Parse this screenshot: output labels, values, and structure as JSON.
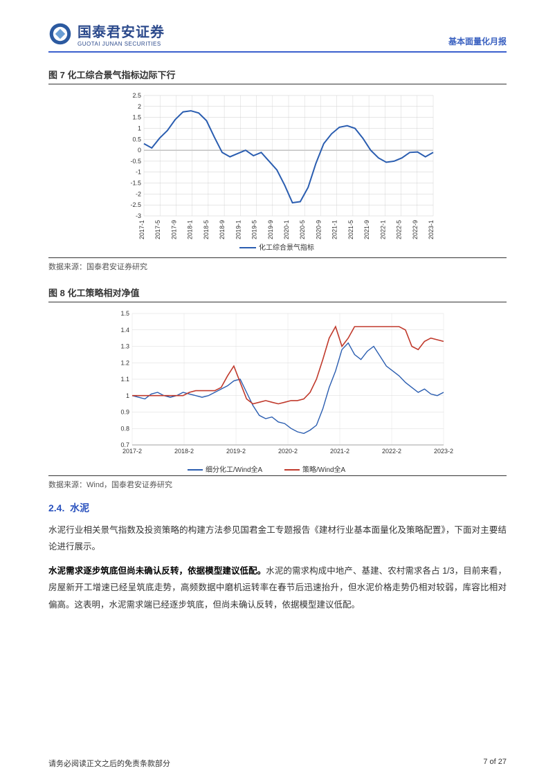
{
  "header": {
    "company_cn": "国泰君安证券",
    "company_en": "GUOTAI JUNAN SECURITIES",
    "report_type": "基本面量化月报",
    "logo_colors": {
      "outer": "#2c5aa0",
      "inner": "#6a9ed4"
    }
  },
  "figure7": {
    "title": "图 7 化工综合景气指标边际下行",
    "source": "数据来源：国泰君安证券研究",
    "type": "line",
    "legend": "化工综合景气指标",
    "line_color": "#2a5db0",
    "line_width": 2,
    "background_color": "#ffffff",
    "grid_color": "#cccccc",
    "ylim": [
      -3,
      2.5
    ],
    "ytick_step": 0.5,
    "yticks": [
      "-3",
      "-2.5",
      "-2",
      "-1.5",
      "-1",
      "-0.5",
      "0",
      "0.5",
      "1",
      "1.5",
      "2",
      "2.5"
    ],
    "x_labels": [
      "2017-1",
      "2017-5",
      "2017-9",
      "2018-1",
      "2018-5",
      "2018-9",
      "2019-1",
      "2019-5",
      "2019-9",
      "2020-1",
      "2020-5",
      "2020-9",
      "2021-1",
      "2021-5",
      "2021-9",
      "2022-1",
      "2022-5",
      "2022-9",
      "2023-1"
    ],
    "values": [
      0.3,
      0.1,
      0.55,
      0.9,
      1.4,
      1.75,
      1.8,
      1.7,
      1.35,
      0.6,
      -0.1,
      -0.3,
      -0.15,
      0.0,
      -0.25,
      -0.1,
      -0.5,
      -0.9,
      -1.6,
      -2.4,
      -2.35,
      -1.7,
      -0.6,
      0.3,
      0.75,
      1.05,
      1.12,
      1.0,
      0.55,
      0.0,
      -0.35,
      -0.55,
      -0.5,
      -0.35,
      -0.1,
      -0.08,
      -0.3,
      -0.1
    ]
  },
  "figure8": {
    "title": "图 8 化工策略相对净值",
    "source": "数据来源：Wind，国泰君安证券研究",
    "type": "line",
    "background_color": "#ffffff",
    "grid_color": "#d8d8d8",
    "ylim": [
      0.7,
      1.5
    ],
    "ytick_step": 0.1,
    "yticks": [
      "0.7",
      "0.8",
      "0.9",
      "1",
      "1.1",
      "1.2",
      "1.3",
      "1.4",
      "1.5"
    ],
    "x_labels": [
      "2017-2",
      "2018-2",
      "2019-2",
      "2020-2",
      "2021-2",
      "2022-2",
      "2023-2"
    ],
    "series": [
      {
        "name": "细分化工/Wind全A",
        "color": "#2a5db0",
        "line_width": 1.4,
        "values": [
          1.0,
          0.99,
          0.98,
          1.01,
          1.02,
          1.0,
          0.99,
          1.0,
          1.02,
          1.01,
          1.0,
          0.99,
          1.0,
          1.02,
          1.04,
          1.06,
          1.09,
          1.1,
          1.02,
          0.94,
          0.88,
          0.86,
          0.87,
          0.84,
          0.83,
          0.8,
          0.78,
          0.77,
          0.79,
          0.82,
          0.92,
          1.05,
          1.15,
          1.28,
          1.32,
          1.25,
          1.22,
          1.27,
          1.3,
          1.24,
          1.18,
          1.15,
          1.12,
          1.08,
          1.05,
          1.02,
          1.04,
          1.01,
          1.0,
          1.02
        ]
      },
      {
        "name": "策略/Wind全A",
        "color": "#c0392b",
        "line_width": 1.6,
        "values": [
          1.0,
          1.0,
          1.0,
          1.0,
          1.0,
          1.0,
          1.0,
          1.0,
          1.0,
          1.02,
          1.03,
          1.03,
          1.03,
          1.03,
          1.05,
          1.12,
          1.18,
          1.08,
          0.98,
          0.95,
          0.96,
          0.97,
          0.96,
          0.95,
          0.96,
          0.97,
          0.97,
          0.98,
          1.02,
          1.1,
          1.22,
          1.35,
          1.42,
          1.3,
          1.35,
          1.42,
          1.42,
          1.42,
          1.42,
          1.42,
          1.42,
          1.42,
          1.42,
          1.4,
          1.3,
          1.28,
          1.33,
          1.35,
          1.34,
          1.33
        ]
      }
    ]
  },
  "section": {
    "number": "2.4.",
    "title": "水泥"
  },
  "paragraphs": {
    "p1": "水泥行业相关景气指数及投资策略的构建方法参见国君金工专题报告《建材行业基本面量化及策略配置》，下面对主要结论进行展示。",
    "p2_bold": "水泥需求逐步筑底但尚未确认反转，依据模型建议低配。",
    "p2_rest": "水泥的需求构成中地产、基建、农村需求各占 1/3，目前来看，房屋新开工增速已经呈筑底走势，高频数据中磨机运转率在春节后迅速抬升，但水泥价格走势仍相对较弱，库容比相对偏高。这表明，水泥需求端已经逐步筑底，但尚未确认反转，依据模型建议低配。"
  },
  "footer": {
    "disclaimer": "请务必阅读正文之后的免责条款部分",
    "page": "7 of 27"
  }
}
